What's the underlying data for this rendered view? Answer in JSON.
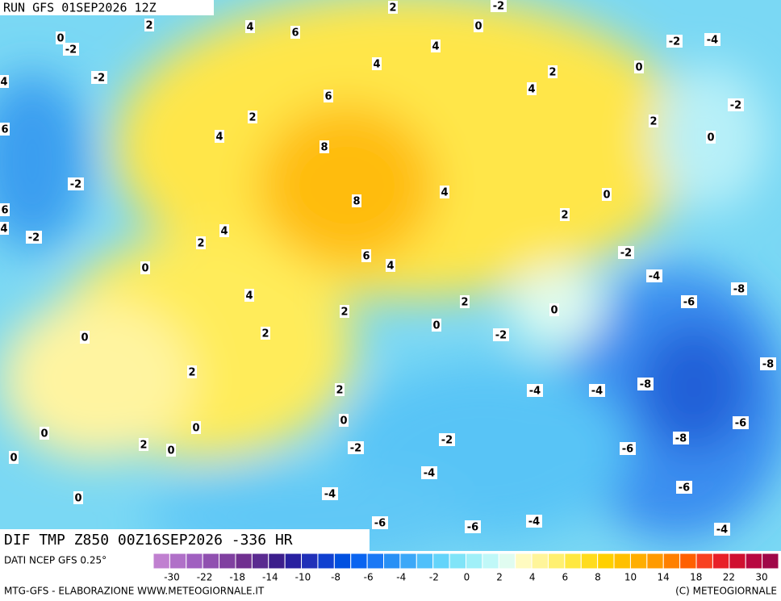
{
  "header": {
    "title": "RUN GFS 01SEP2026 12Z"
  },
  "map": {
    "caption": "DIF TMP Z850 00Z16SEP2026 -336 HR",
    "contour_labels": [
      "2",
      "2",
      "-2",
      "4",
      "6",
      "0",
      "-2",
      "0",
      "-2",
      "-4",
      "4",
      "4",
      "-2",
      "4",
      "2",
      "0",
      "4",
      "6",
      "-2",
      "2",
      "6",
      "2",
      "4",
      "0",
      "8",
      "-2",
      "4",
      "8",
      "0",
      "6",
      "4",
      "4",
      "-2",
      "2",
      "2",
      "6",
      "-2",
      "0",
      "4",
      "-4",
      "-8",
      "4",
      "-6",
      "2",
      "0",
      "2",
      "0",
      "0",
      "2",
      "-2",
      "-8",
      "2",
      "-8",
      "-4",
      "-4",
      "2",
      "0",
      "-6",
      "0",
      "0",
      "-8",
      "-2",
      "-2",
      "2",
      "0",
      "-6",
      "0",
      "-4",
      "-6",
      "-4",
      "0",
      "-4",
      "-6",
      "-6",
      "-4"
    ]
  },
  "legend": {
    "source": "DATI NCEP GFS 0.25°",
    "colors": [
      "#c080d0",
      "#b070c8",
      "#a060c0",
      "#9050b0",
      "#8040a0",
      "#703090",
      "#5a2a90",
      "#3c1e8c",
      "#2820a0",
      "#2030b8",
      "#1040d0",
      "#0050e0",
      "#0a64f0",
      "#1a78f5",
      "#2890f5",
      "#3ca8f8",
      "#50c0fa",
      "#64d4fa",
      "#80e4f8",
      "#a0f0f8",
      "#c0f8f8",
      "#e0fcf0",
      "#fffbc0",
      "#fff59a",
      "#fff070",
      "#ffe840",
      "#ffdc1e",
      "#ffd000",
      "#ffc000",
      "#ffae00",
      "#ff9a00",
      "#ff8000",
      "#ff6000",
      "#f84020",
      "#e82028",
      "#d01030",
      "#b80840",
      "#a00848"
    ],
    "ticks": [
      -30,
      -22,
      -18,
      -14,
      -10,
      -8,
      -6,
      -4,
      -2,
      0,
      2,
      4,
      6,
      8,
      10,
      14,
      18,
      22,
      30
    ]
  },
  "footer": {
    "left": "MTG-GFS - ELABORAZIONE WWW.METEOGIORNALE.IT",
    "right": "(C) METEOGIORNALE"
  }
}
